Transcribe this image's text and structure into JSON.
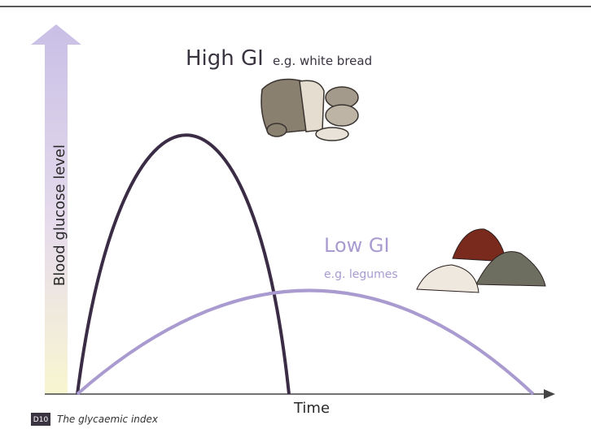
{
  "high_gi": {
    "title": "High GI",
    "example": "e.g. white bread"
  },
  "low_gi": {
    "title": "Low GI",
    "example": "e.g. legumes"
  },
  "y_axis_label": "Blood glucose level",
  "x_axis_label": "Time",
  "caption": {
    "code": "D10",
    "text": "The glycaemic index"
  }
}
